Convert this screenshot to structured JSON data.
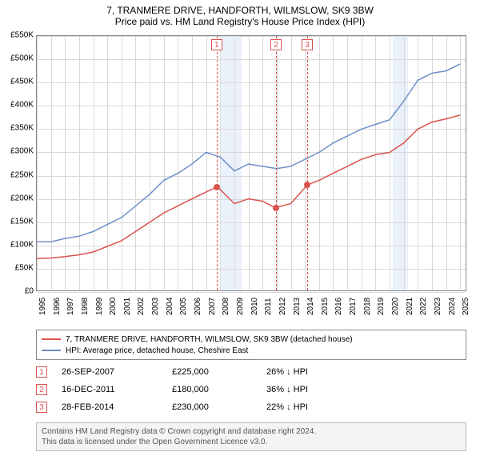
{
  "title": {
    "line1": "7, TRANMERE DRIVE, HANDFORTH, WILMSLOW, SK9 3BW",
    "line2": "Price paid vs. HM Land Registry's House Price Index (HPI)",
    "fontsize": 12,
    "color": "#000000"
  },
  "chart": {
    "type": "line",
    "background_color": "#ffffff",
    "grid_color": "#d9d9d9",
    "border_color": "#888888",
    "shaded_band_color": "#eaf1fb",
    "xlim": [
      1995,
      2025.5
    ],
    "ylim": [
      0,
      550000
    ],
    "ytick_step": 50000,
    "y_axis": {
      "ticks": [
        0,
        50000,
        100000,
        150000,
        200000,
        250000,
        300000,
        350000,
        400000,
        450000,
        500000,
        550000
      ],
      "labels": [
        "£0",
        "£50K",
        "£100K",
        "£150K",
        "£200K",
        "£250K",
        "£300K",
        "£350K",
        "£400K",
        "£450K",
        "£500K",
        "£550K"
      ],
      "label_fontsize": 10
    },
    "x_axis": {
      "ticks": [
        1995,
        1996,
        1997,
        1998,
        1999,
        2000,
        2001,
        2002,
        2003,
        2004,
        2005,
        2006,
        2007,
        2008,
        2009,
        2010,
        2011,
        2012,
        2013,
        2014,
        2015,
        2016,
        2017,
        2018,
        2019,
        2020,
        2021,
        2022,
        2023,
        2024,
        2025
      ],
      "label_fontsize": 10
    },
    "shaded_bands": [
      {
        "from": 2008,
        "to": 2009.5
      },
      {
        "from": 2020.2,
        "to": 2021.3
      }
    ],
    "series": [
      {
        "id": "property",
        "label": "7, TRANMERE DRIVE, HANDFORTH, WILMSLOW, SK9 3BW (detached house)",
        "color": "#d9534f",
        "line_width": 1.5,
        "points": [
          [
            1995,
            72000
          ],
          [
            1996,
            73000
          ],
          [
            1997,
            76000
          ],
          [
            1998,
            80000
          ],
          [
            1999,
            86000
          ],
          [
            2000,
            98000
          ],
          [
            2001,
            110000
          ],
          [
            2002,
            130000
          ],
          [
            2003,
            150000
          ],
          [
            2004,
            170000
          ],
          [
            2005,
            185000
          ],
          [
            2006,
            200000
          ],
          [
            2007,
            215000
          ],
          [
            2007.74,
            225000
          ],
          [
            2008,
            220000
          ],
          [
            2009,
            190000
          ],
          [
            2010,
            200000
          ],
          [
            2011,
            195000
          ],
          [
            2011.96,
            180000
          ],
          [
            2012,
            182000
          ],
          [
            2013,
            190000
          ],
          [
            2014.16,
            230000
          ],
          [
            2015,
            240000
          ],
          [
            2016,
            255000
          ],
          [
            2017,
            270000
          ],
          [
            2018,
            285000
          ],
          [
            2019,
            295000
          ],
          [
            2020,
            300000
          ],
          [
            2021,
            320000
          ],
          [
            2022,
            350000
          ],
          [
            2023,
            365000
          ],
          [
            2024,
            372000
          ],
          [
            2025,
            380000
          ]
        ]
      },
      {
        "id": "hpi",
        "label": "HPI: Average price, detached house, Cheshire East",
        "color": "#6f8fc9",
        "line_width": 1.5,
        "points": [
          [
            1995,
            108000
          ],
          [
            1996,
            108000
          ],
          [
            1997,
            115000
          ],
          [
            1998,
            120000
          ],
          [
            1999,
            130000
          ],
          [
            2000,
            145000
          ],
          [
            2001,
            160000
          ],
          [
            2002,
            185000
          ],
          [
            2003,
            210000
          ],
          [
            2004,
            240000
          ],
          [
            2005,
            255000
          ],
          [
            2006,
            275000
          ],
          [
            2007,
            300000
          ],
          [
            2008,
            290000
          ],
          [
            2009,
            260000
          ],
          [
            2010,
            275000
          ],
          [
            2011,
            270000
          ],
          [
            2012,
            265000
          ],
          [
            2013,
            270000
          ],
          [
            2014,
            285000
          ],
          [
            2015,
            300000
          ],
          [
            2016,
            320000
          ],
          [
            2017,
            335000
          ],
          [
            2018,
            350000
          ],
          [
            2019,
            360000
          ],
          [
            2020,
            370000
          ],
          [
            2021,
            410000
          ],
          [
            2022,
            455000
          ],
          [
            2023,
            470000
          ],
          [
            2024,
            475000
          ],
          [
            2025,
            490000
          ]
        ]
      }
    ],
    "sale_markers": {
      "color": "#d9534f",
      "radius": 4,
      "points": [
        {
          "n": 1,
          "x": 2007.74,
          "y": 225000
        },
        {
          "n": 2,
          "x": 2011.96,
          "y": 180000
        },
        {
          "n": 3,
          "x": 2014.16,
          "y": 230000
        }
      ]
    },
    "sale_vlines": {
      "color": "#d9534f",
      "dash": "3,3",
      "x": [
        2007.74,
        2011.96,
        2014.16
      ]
    }
  },
  "legend": {
    "border_color": "#888888",
    "fontsize": 10,
    "items": [
      {
        "color": "#d9534f",
        "label": "7, TRANMERE DRIVE, HANDFORTH, WILMSLOW, SK9 3BW (detached house)"
      },
      {
        "color": "#6f8fc9",
        "label": "HPI: Average price, detached house, Cheshire East"
      }
    ]
  },
  "sales_table": {
    "badge_border": "#d9534f",
    "fontsize": 11,
    "rows": [
      {
        "n": "1",
        "date": "26-SEP-2007",
        "price": "£225,000",
        "diff": "26% ↓ HPI"
      },
      {
        "n": "2",
        "date": "16-DEC-2011",
        "price": "£180,000",
        "diff": "36% ↓ HPI"
      },
      {
        "n": "3",
        "date": "28-FEB-2014",
        "price": "£230,000",
        "diff": "22% ↓ HPI"
      }
    ]
  },
  "footer": {
    "line1": "Contains HM Land Registry data © Crown copyright and database right 2024.",
    "line2": "This data is licensed under the Open Government Licence v3.0.",
    "background": "#f4f4f4",
    "border": "#bbbbbb",
    "fontsize": 10,
    "color": "#555555"
  }
}
